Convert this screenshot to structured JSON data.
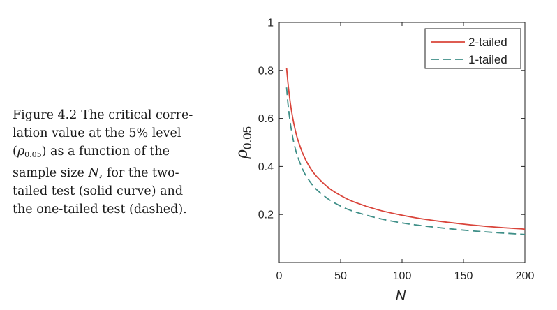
{
  "caption": {
    "label": "Figure 4.2",
    "lines": [
      {
        "text": "The critical corre-"
      },
      {
        "text": "lation value at the 5% level"
      },
      {
        "pre": "(",
        "symbol": "ρ",
        "sub": "0.05",
        "post": ")  as  a  function  of  the"
      },
      {
        "pre": "sample size ",
        "symbol": "N",
        "post": ",  for  the  two-"
      },
      {
        "text": "tailed test (solid curve) and"
      },
      {
        "text": "the one-tailed test (dashed)."
      }
    ]
  },
  "chart_data": {
    "type": "line",
    "xlabel": "N",
    "ylabel": "ρ",
    "ylabel_sub": "0.05",
    "xlim": [
      0,
      200
    ],
    "ylim": [
      0,
      1
    ],
    "xticks": [
      0,
      50,
      100,
      150,
      200
    ],
    "yticks": [
      0.2,
      0.4,
      0.6,
      0.8,
      1
    ],
    "ytick_labels": [
      "0.2",
      "0.4",
      "0.6",
      "0.8",
      "1"
    ],
    "grid": false,
    "legend_position": "top-right",
    "series": [
      {
        "name": "2-tailed",
        "style": "solid",
        "color": "#d9443a",
        "x": [
          6,
          7,
          8,
          9,
          10,
          12,
          15,
          20,
          25,
          30,
          40,
          50,
          60,
          80,
          100,
          120,
          150,
          175,
          200
        ],
        "y": [
          0.811,
          0.754,
          0.707,
          0.666,
          0.632,
          0.576,
          0.514,
          0.444,
          0.396,
          0.361,
          0.312,
          0.279,
          0.254,
          0.22,
          0.197,
          0.179,
          0.16,
          0.148,
          0.139
        ]
      },
      {
        "name": "1-tailed",
        "style": "dashed",
        "color": "#3f8f88",
        "x": [
          6,
          7,
          8,
          9,
          10,
          12,
          15,
          20,
          25,
          30,
          40,
          50,
          60,
          80,
          100,
          120,
          150,
          175,
          200
        ],
        "y": [
          0.729,
          0.669,
          0.621,
          0.582,
          0.549,
          0.497,
          0.441,
          0.378,
          0.337,
          0.306,
          0.264,
          0.235,
          0.214,
          0.185,
          0.165,
          0.151,
          0.135,
          0.125,
          0.117
        ]
      }
    ]
  }
}
